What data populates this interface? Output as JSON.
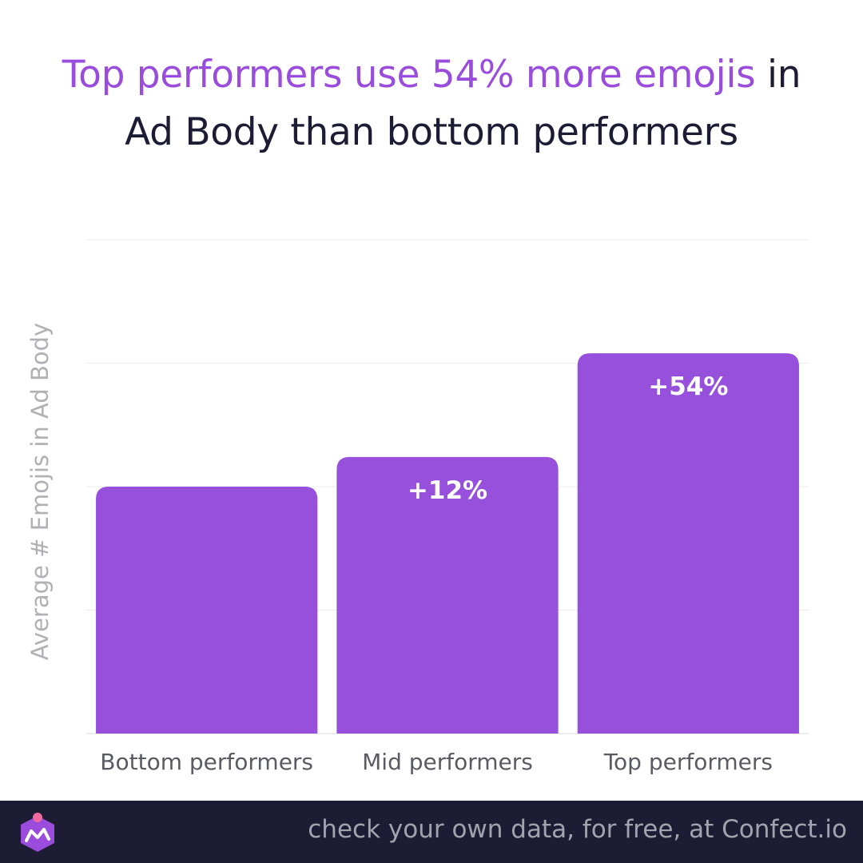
{
  "headline": {
    "highlight": "Top performers use 54% more emojis",
    "line1_rest": " in",
    "line2": "Ad Body than bottom performers"
  },
  "colors": {
    "bar": "#9650dc",
    "highlight": "#9a4ddc",
    "title": "#1c1d35",
    "footer_bg": "#1c1d35"
  },
  "chart_data": {
    "type": "bar",
    "title": "Top performers use 54% more emojis in Ad Body than bottom performers",
    "xlabel": "",
    "ylabel": "Average # Emojis in Ad Body",
    "categories": [
      "Bottom performers",
      "Mid performers",
      "Top performers"
    ],
    "values": [
      1,
      1.12,
      1.54
    ],
    "data_labels": [
      "",
      "+12%",
      "+54%"
    ],
    "ylim": [
      0,
      2
    ],
    "yticks": [
      0,
      0.5,
      1,
      1.5,
      2
    ],
    "grid": true,
    "ytick_labels_shown": false
  },
  "footer": {
    "text": "check your own data, for free, at Confect.io",
    "logo_icon": "confect-logo-icon"
  }
}
